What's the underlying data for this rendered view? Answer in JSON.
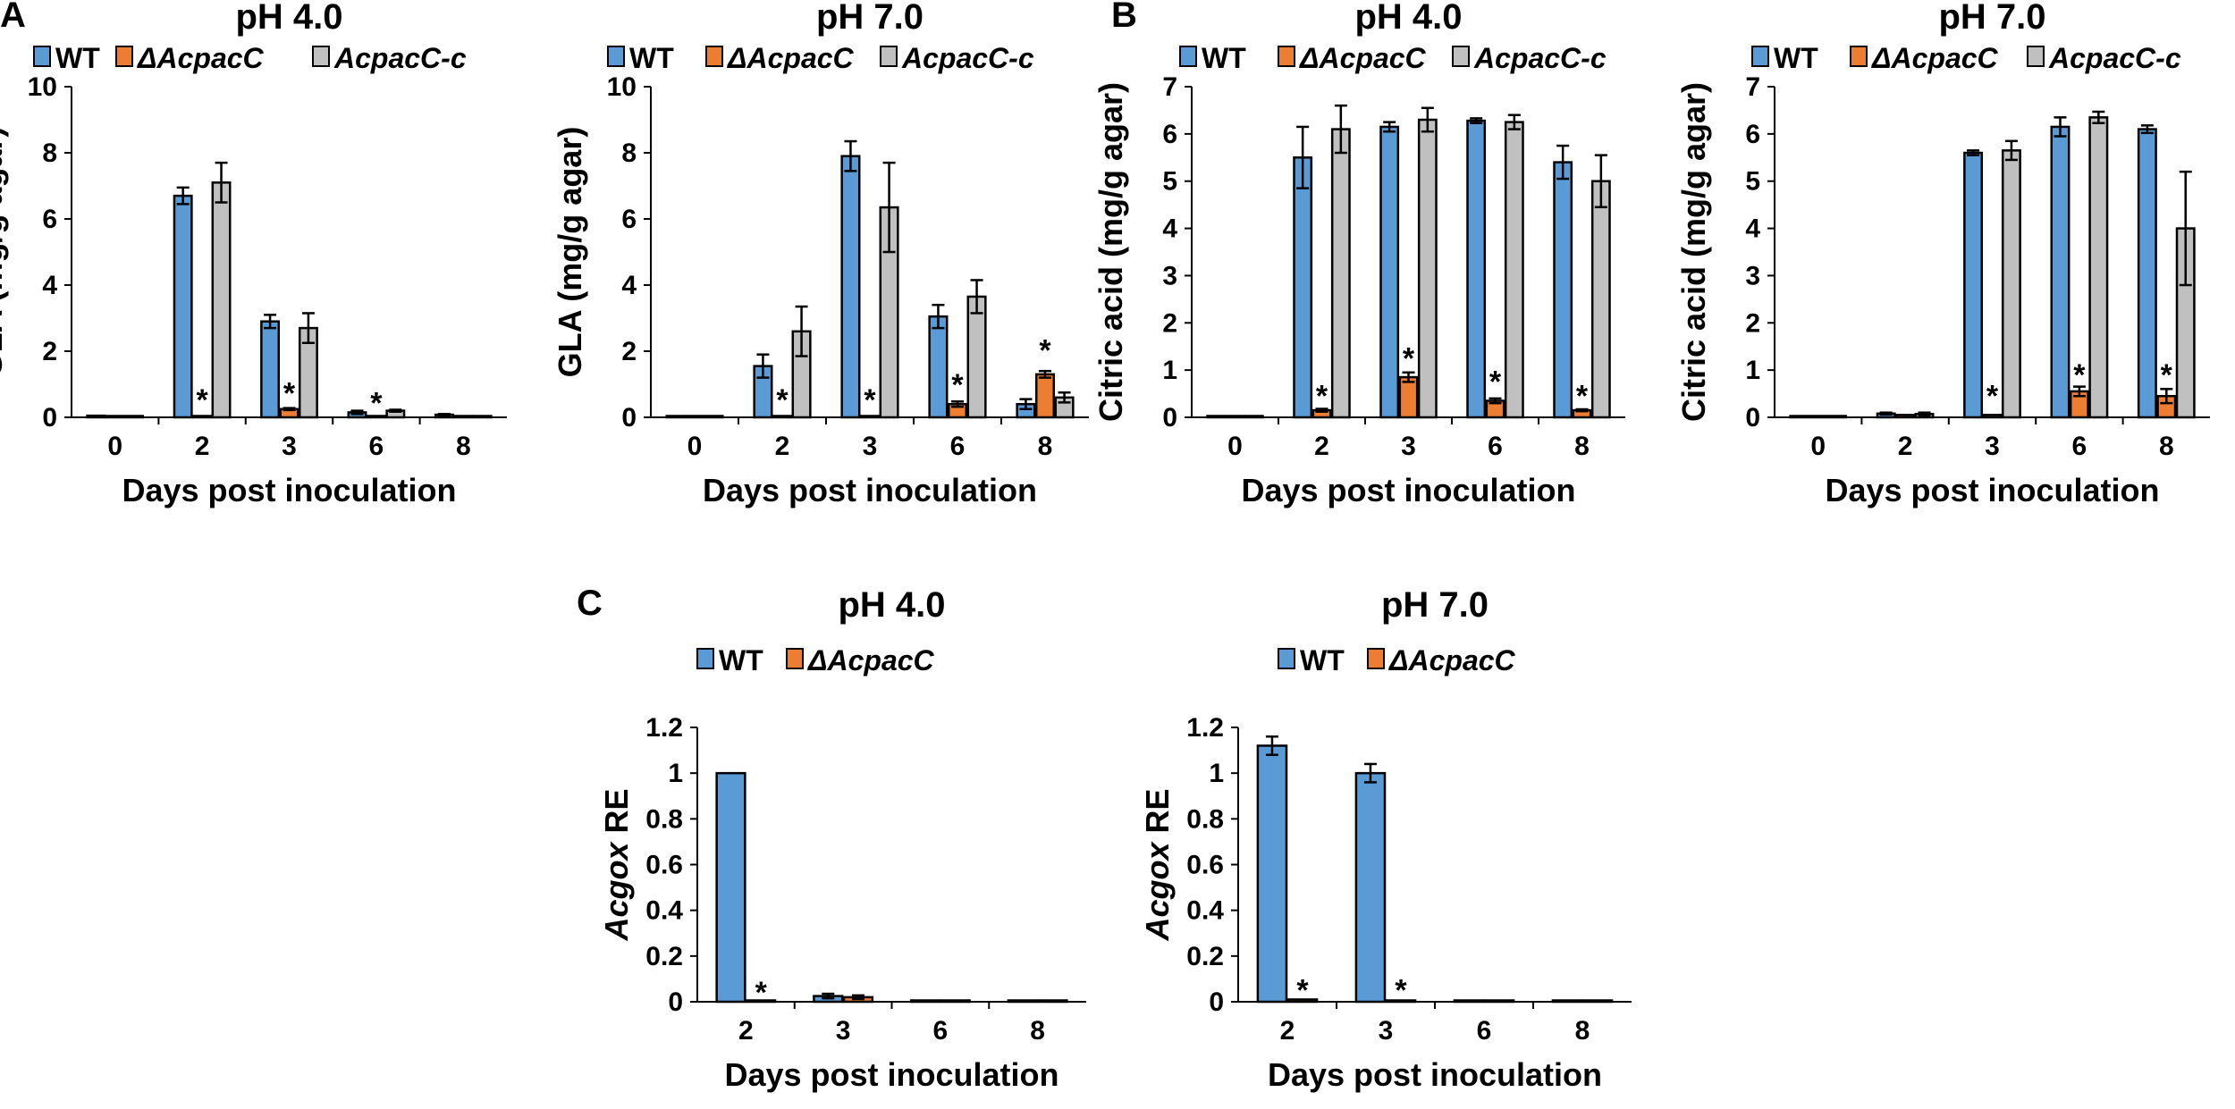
{
  "panel_letters": [
    "A",
    "B",
    "C"
  ],
  "colors": {
    "wt": "#5b9bd5",
    "mutant": "#ed7d31",
    "comp": "#c0c0c0",
    "outline": "#000000"
  },
  "chart_data": [
    {
      "type": "bar",
      "panel": "A",
      "title": "pH 4.0",
      "xlabel": "Days post inoculation",
      "ylabel": "GLA (mg/g agar)",
      "ylim": [
        0,
        10
      ],
      "yticks": [
        0,
        2,
        4,
        6,
        8,
        10
      ],
      "categories": [
        "0",
        "2",
        "3",
        "6",
        "8"
      ],
      "series": [
        {
          "name": "WT",
          "italic": false,
          "values": [
            0.05,
            6.7,
            2.9,
            0.15,
            0.08
          ],
          "errors": [
            0,
            0.25,
            0.2,
            0.05,
            0.02
          ]
        },
        {
          "name": "ΔAcpacC",
          "italic": true,
          "values": [
            0.02,
            0.02,
            0.25,
            0.03,
            0.03
          ],
          "errors": [
            0,
            0,
            0.03,
            0,
            0
          ]
        },
        {
          "name": "AcpacC-c",
          "italic": true,
          "values": [
            0.03,
            7.1,
            2.7,
            0.2,
            0.03
          ],
          "errors": [
            0,
            0.6,
            0.45,
            0.03,
            0
          ]
        }
      ],
      "stars": [
        {
          "category": 1,
          "series": 1,
          "y": 0.6
        },
        {
          "category": 2,
          "series": 1,
          "y": 0.8
        },
        {
          "category": 3,
          "series": 1,
          "y": 0.5
        }
      ]
    },
    {
      "type": "bar",
      "panel": "",
      "title": "pH 7.0",
      "xlabel": "Days post inoculation",
      "ylabel": "GLA (mg/g agar)",
      "ylim": [
        0,
        10
      ],
      "yticks": [
        0,
        2,
        4,
        6,
        8,
        10
      ],
      "categories": [
        "0",
        "2",
        "3",
        "6",
        "8"
      ],
      "series": [
        {
          "name": "WT",
          "italic": false,
          "values": [
            0.03,
            1.55,
            7.9,
            3.05,
            0.4
          ],
          "errors": [
            0,
            0.35,
            0.45,
            0.35,
            0.15
          ]
        },
        {
          "name": "ΔAcpacC",
          "italic": true,
          "values": [
            0.02,
            0.03,
            0.03,
            0.4,
            1.3
          ],
          "errors": [
            0,
            0,
            0,
            0.08,
            0.1
          ]
        },
        {
          "name": "AcpacC-c",
          "italic": true,
          "values": [
            0.03,
            2.6,
            6.35,
            3.65,
            0.6
          ],
          "errors": [
            0,
            0.75,
            1.35,
            0.5,
            0.15
          ]
        }
      ],
      "stars": [
        {
          "category": 1,
          "series": 1,
          "y": 0.6
        },
        {
          "category": 2,
          "series": 1,
          "y": 0.6
        },
        {
          "category": 3,
          "series": 1,
          "y": 1.05
        },
        {
          "category": 4,
          "series": 1,
          "y": 2.1
        }
      ]
    },
    {
      "type": "bar",
      "panel": "B",
      "title": "pH 4.0",
      "xlabel": "Days post inoculation",
      "ylabel": "Citric acid (mg/g agar)",
      "ylim": [
        0,
        7
      ],
      "yticks": [
        0,
        1,
        2,
        3,
        4,
        5,
        6,
        7
      ],
      "categories": [
        "0",
        "2",
        "3",
        "6",
        "8"
      ],
      "series": [
        {
          "name": "WT",
          "italic": false,
          "values": [
            0.02,
            5.5,
            6.15,
            6.28,
            5.4
          ],
          "errors": [
            0,
            0.65,
            0.1,
            0.05,
            0.35
          ]
        },
        {
          "name": "ΔAcpacC",
          "italic": true,
          "values": [
            0.02,
            0.15,
            0.85,
            0.35,
            0.15
          ],
          "errors": [
            0,
            0.03,
            0.1,
            0.05,
            0.02
          ]
        },
        {
          "name": "AcpacC-c",
          "italic": true,
          "values": [
            0.02,
            6.1,
            6.3,
            6.25,
            5.0
          ],
          "errors": [
            0,
            0.5,
            0.25,
            0.15,
            0.55
          ]
        }
      ],
      "stars": [
        {
          "category": 1,
          "series": 1,
          "y": 0.5
        },
        {
          "category": 2,
          "series": 1,
          "y": 1.3
        },
        {
          "category": 3,
          "series": 1,
          "y": 0.8
        },
        {
          "category": 4,
          "series": 1,
          "y": 0.5
        }
      ]
    },
    {
      "type": "bar",
      "panel": "",
      "title": "pH 7.0",
      "xlabel": "Days post inoculation",
      "ylabel": "Citric acid (mg/g agar)",
      "ylim": [
        0,
        7
      ],
      "yticks": [
        0,
        1,
        2,
        3,
        4,
        5,
        6,
        7
      ],
      "categories": [
        "0",
        "2",
        "3",
        "6",
        "8"
      ],
      "series": [
        {
          "name": "WT",
          "italic": false,
          "values": [
            0.02,
            0.08,
            5.6,
            6.15,
            6.1
          ],
          "errors": [
            0,
            0.02,
            0.05,
            0.2,
            0.08
          ]
        },
        {
          "name": "ΔAcpacC",
          "italic": true,
          "values": [
            0.02,
            0.05,
            0.05,
            0.55,
            0.45
          ],
          "errors": [
            0,
            0,
            0,
            0.1,
            0.15
          ]
        },
        {
          "name": "AcpacC-c",
          "italic": true,
          "values": [
            0.02,
            0.07,
            5.65,
            6.35,
            4.0
          ],
          "errors": [
            0,
            0.03,
            0.2,
            0.12,
            1.2
          ]
        }
      ],
      "stars": [
        {
          "category": 2,
          "series": 1,
          "y": 0.5
        },
        {
          "category": 3,
          "series": 1,
          "y": 0.95
        },
        {
          "category": 4,
          "series": 1,
          "y": 0.95
        }
      ]
    },
    {
      "type": "bar",
      "panel": "C",
      "title": "pH 4.0",
      "xlabel": "Days post inoculation",
      "ylabel_italic": "Acgox",
      "ylabel_rest": " RE",
      "ylim": [
        0,
        1.2
      ],
      "yticks": [
        0,
        0.2,
        0.4,
        0.6,
        0.8,
        1,
        1.2
      ],
      "categories": [
        "2",
        "3",
        "6",
        "8"
      ],
      "series": [
        {
          "name": "WT",
          "italic": false,
          "values": [
            1.0,
            0.025,
            0.005,
            0.005
          ],
          "errors": [
            0,
            0.01,
            0,
            0
          ]
        },
        {
          "name": "ΔAcpacC",
          "italic": true,
          "values": [
            0.005,
            0.02,
            0.005,
            0.005
          ],
          "errors": [
            0,
            0.008,
            0,
            0
          ]
        }
      ],
      "stars": [
        {
          "category": 0,
          "series": 1,
          "y": 0.05
        }
      ]
    },
    {
      "type": "bar",
      "panel": "",
      "title": "pH 7.0",
      "xlabel": "Days post inoculation",
      "ylabel_italic": "Acgox",
      "ylabel_rest": " RE",
      "ylim": [
        0,
        1.2
      ],
      "yticks": [
        0,
        0.2,
        0.4,
        0.6,
        0.8,
        1,
        1.2
      ],
      "categories": [
        "2",
        "3",
        "6",
        "8"
      ],
      "series": [
        {
          "name": "WT",
          "italic": false,
          "values": [
            1.12,
            1.0,
            0.005,
            0.005
          ],
          "errors": [
            0.04,
            0.04,
            0,
            0
          ]
        },
        {
          "name": "ΔAcpacC",
          "italic": true,
          "values": [
            0.01,
            0.005,
            0.005,
            0.005
          ],
          "errors": [
            0,
            0,
            0,
            0
          ]
        }
      ],
      "stars": [
        {
          "category": 0,
          "series": 1,
          "y": 0.06
        },
        {
          "category": 1,
          "series": 1,
          "y": 0.06
        }
      ]
    }
  ]
}
